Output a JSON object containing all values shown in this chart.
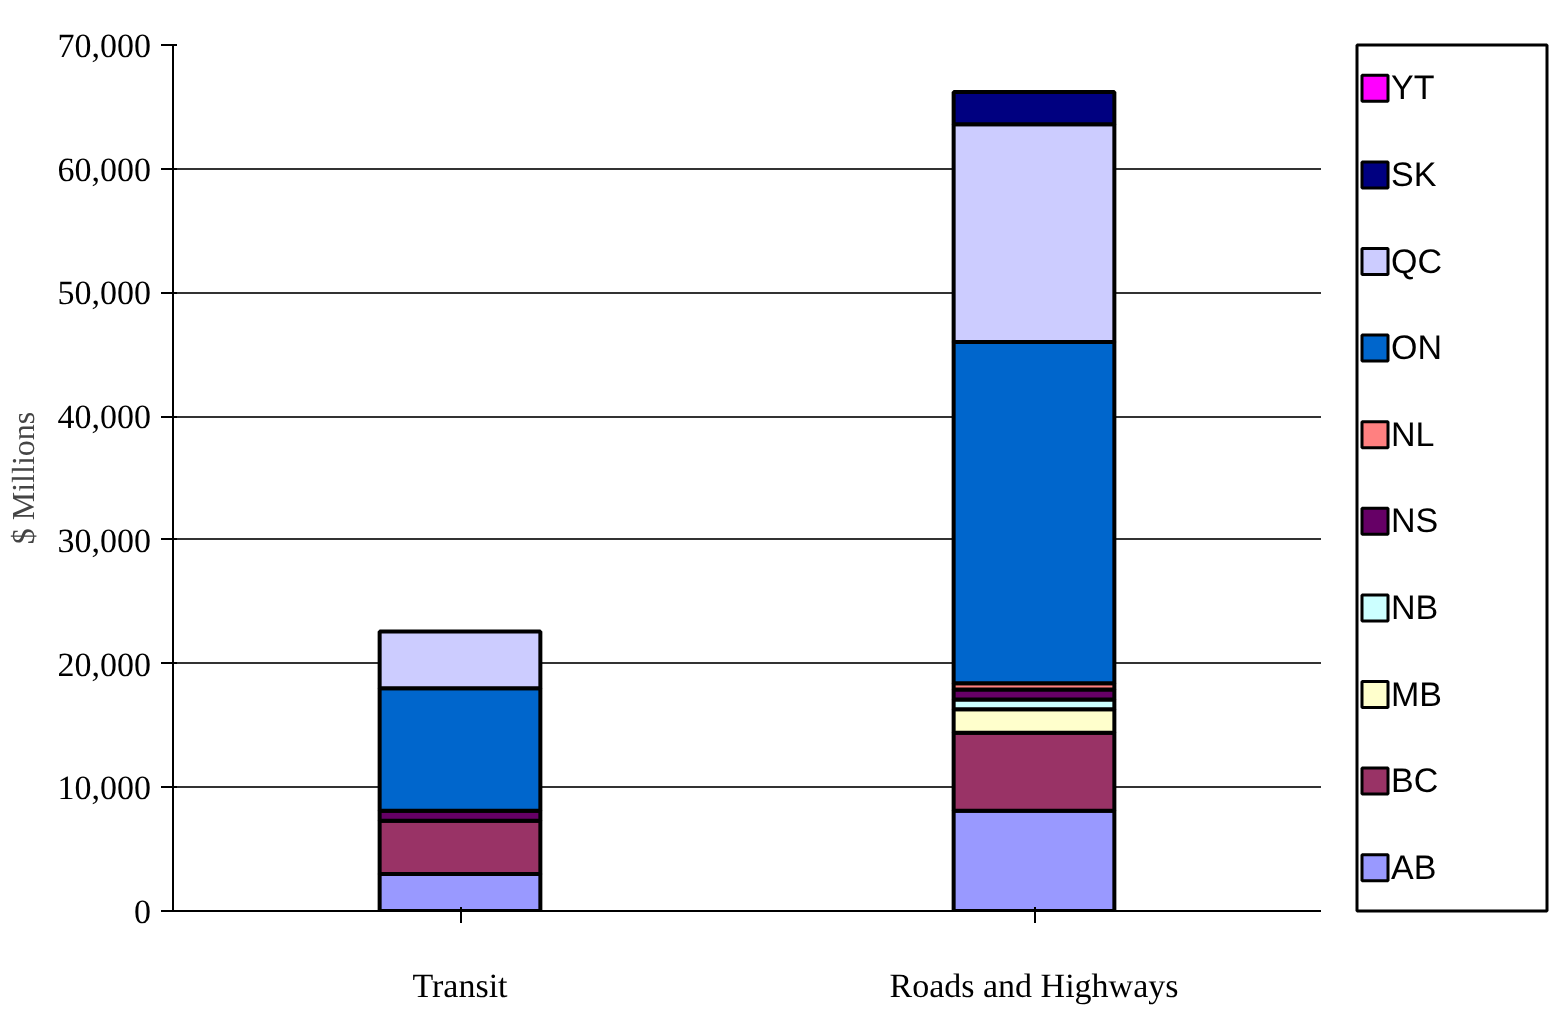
{
  "chart_data": {
    "type": "bar",
    "stacked": true,
    "ylabel": "$ Millions",
    "categories": [
      "Transit",
      "Roads and Highways"
    ],
    "series": [
      {
        "name": "AB",
        "color": "#9999ff",
        "values": [
          3000,
          8100
        ]
      },
      {
        "name": "BC",
        "color": "#993366",
        "values": [
          4300,
          6300
        ]
      },
      {
        "name": "MB",
        "color": "#ffffcc",
        "values": [
          0,
          1900
        ]
      },
      {
        "name": "NB",
        "color": "#ccffff",
        "values": [
          0,
          800
        ]
      },
      {
        "name": "NS",
        "color": "#660066",
        "values": [
          800,
          800
        ]
      },
      {
        "name": "NL",
        "color": "#ff8080",
        "values": [
          0,
          500
        ]
      },
      {
        "name": "ON",
        "color": "#0066cc",
        "values": [
          9900,
          27600
        ]
      },
      {
        "name": "QC",
        "color": "#ccccff",
        "values": [
          4600,
          17600
        ]
      },
      {
        "name": "SK",
        "color": "#000080",
        "values": [
          0,
          2600
        ]
      },
      {
        "name": "YT",
        "color": "#ff00ff",
        "values": [
          0,
          0
        ]
      }
    ],
    "ylim": [
      0,
      70000
    ],
    "yticks": [
      {
        "value": 0,
        "label": "0"
      },
      {
        "value": 10000,
        "label": "10,000"
      },
      {
        "value": 20000,
        "label": "20,000"
      },
      {
        "value": 30000,
        "label": "30,000"
      },
      {
        "value": 40000,
        "label": "40,000"
      },
      {
        "value": 50000,
        "label": "50,000"
      },
      {
        "value": 60000,
        "label": "60,000"
      },
      {
        "value": 70000,
        "label": "70,000"
      }
    ],
    "grid": "y",
    "legend": "right"
  }
}
